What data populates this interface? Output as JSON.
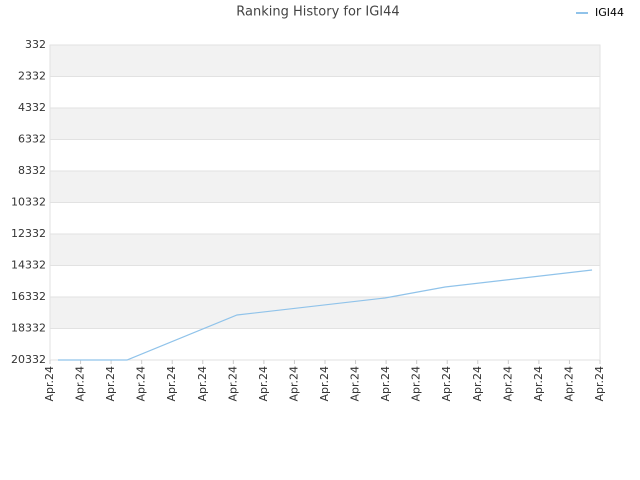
{
  "chart_data": {
    "type": "line",
    "title": "Ranking History for IGI44",
    "x": [
      0.26,
      2.52,
      6.12,
      10.96,
      12.93,
      17.74
    ],
    "series": [
      {
        "name": "IGI44",
        "color": "#90c3ea",
        "values": [
          20332,
          20332,
          17475,
          16395,
          15697,
          14618
        ]
      }
    ],
    "xlim": [
      0,
      18
    ],
    "xticks": [
      {
        "value": 0,
        "label": "Apr.24"
      },
      {
        "value": 1,
        "label": "Apr.24"
      },
      {
        "value": 2,
        "label": "Apr.24"
      },
      {
        "value": 3,
        "label": "Apr.24"
      },
      {
        "value": 4,
        "label": "Apr.24"
      },
      {
        "value": 5,
        "label": "Apr.24"
      },
      {
        "value": 6,
        "label": "Apr.24"
      },
      {
        "value": 7,
        "label": "Apr.24"
      },
      {
        "value": 8,
        "label": "Apr.24"
      },
      {
        "value": 9,
        "label": "Apr.24"
      },
      {
        "value": 10,
        "label": "Apr.24"
      },
      {
        "value": 11,
        "label": "Apr.24"
      },
      {
        "value": 12,
        "label": "Apr.24"
      },
      {
        "value": 13,
        "label": "Apr.24"
      },
      {
        "value": 14,
        "label": "Apr.24"
      },
      {
        "value": 15,
        "label": "Apr.24"
      },
      {
        "value": 16,
        "label": "Apr.24"
      },
      {
        "value": 17,
        "label": "Apr.24"
      },
      {
        "value": 18,
        "label": "Apr.24"
      }
    ],
    "ylim": [
      20332,
      332
    ],
    "yticks": [
      332,
      2332,
      4332,
      6332,
      8332,
      10332,
      12332,
      14332,
      16332,
      18332,
      20332
    ],
    "grid": true,
    "legend": "top-right"
  }
}
